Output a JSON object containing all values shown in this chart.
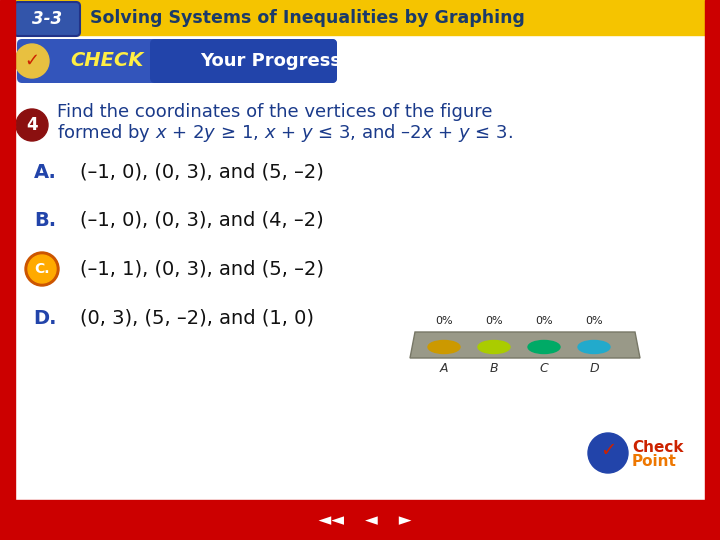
{
  "bg_color": "#f5f5f5",
  "header_bg": "#f5c400",
  "header_text": "3-3",
  "header_subtitle": "Solving Systems of Inequalities by Graphing",
  "header_subtitle_color": "#1a3a6a",
  "left_border_color": "#cc0000",
  "right_border_color": "#cc0000",
  "bottom_border_color": "#cc0000",
  "check_banner_color_left": "#4466cc",
  "check_banner_color_right": "#2244aa",
  "question_number": "4",
  "question_number_bg": "#8B1010",
  "question_color": "#1a3a8a",
  "option_A_text": "(–1, 0), (0, 3), and (5, –2)",
  "option_B_text": "(–1, 0), (0, 3), and (4, –2)",
  "option_C_text": "(–1, 1), (0, 3), and (5, –2)",
  "option_D_text": "(0, 3), (5, –2), and (1, 0)",
  "option_text_color": "#111111",
  "option_label_color": "#2244aa",
  "correct_option": "C",
  "poll_bar_colors": [
    "#cc9900",
    "#aacc00",
    "#00aa66",
    "#22aacc"
  ],
  "poll_percentages": [
    "0%",
    "0%",
    "0%",
    "0%"
  ],
  "poll_labels": [
    "A",
    "B",
    "C",
    "D"
  ]
}
